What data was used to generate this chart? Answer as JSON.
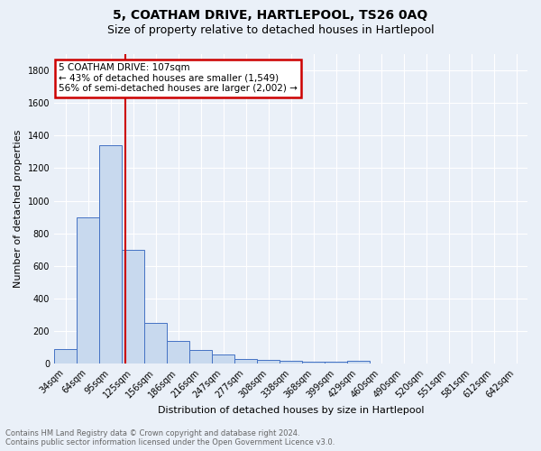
{
  "title": "5, COATHAM DRIVE, HARTLEPOOL, TS26 0AQ",
  "subtitle": "Size of property relative to detached houses in Hartlepool",
  "xlabel": "Distribution of detached houses by size in Hartlepool",
  "ylabel": "Number of detached properties",
  "footnote": "Contains HM Land Registry data © Crown copyright and database right 2024.\nContains public sector information licensed under the Open Government Licence v3.0.",
  "categories": [
    "34sqm",
    "64sqm",
    "95sqm",
    "125sqm",
    "156sqm",
    "186sqm",
    "216sqm",
    "247sqm",
    "277sqm",
    "308sqm",
    "338sqm",
    "368sqm",
    "399sqm",
    "429sqm",
    "460sqm",
    "490sqm",
    "520sqm",
    "551sqm",
    "581sqm",
    "612sqm",
    "642sqm"
  ],
  "values": [
    90,
    900,
    1340,
    700,
    250,
    140,
    85,
    55,
    30,
    25,
    18,
    12,
    10,
    20,
    0,
    0,
    0,
    0,
    0,
    0,
    0
  ],
  "bar_color": "#c8d9ee",
  "bar_edge_color": "#4472c4",
  "background_color": "#eaf0f8",
  "grid_color": "#ffffff",
  "annotation_line1": "5 COATHAM DRIVE: 107sqm",
  "annotation_line2": "← 43% of detached houses are smaller (1,549)",
  "annotation_line3": "56% of semi-detached houses are larger (2,002) →",
  "annotation_box_color": "#ffffff",
  "annotation_box_edge_color": "#cc0000",
  "red_line_x": 2.67,
  "ylim": [
    0,
    1900
  ],
  "yticks": [
    0,
    200,
    400,
    600,
    800,
    1000,
    1200,
    1400,
    1600,
    1800
  ],
  "title_fontsize": 10,
  "subtitle_fontsize": 9,
  "ylabel_fontsize": 8,
  "xlabel_fontsize": 8,
  "tick_fontsize": 7,
  "footnote_fontsize": 6,
  "footnote_color": "#666666"
}
